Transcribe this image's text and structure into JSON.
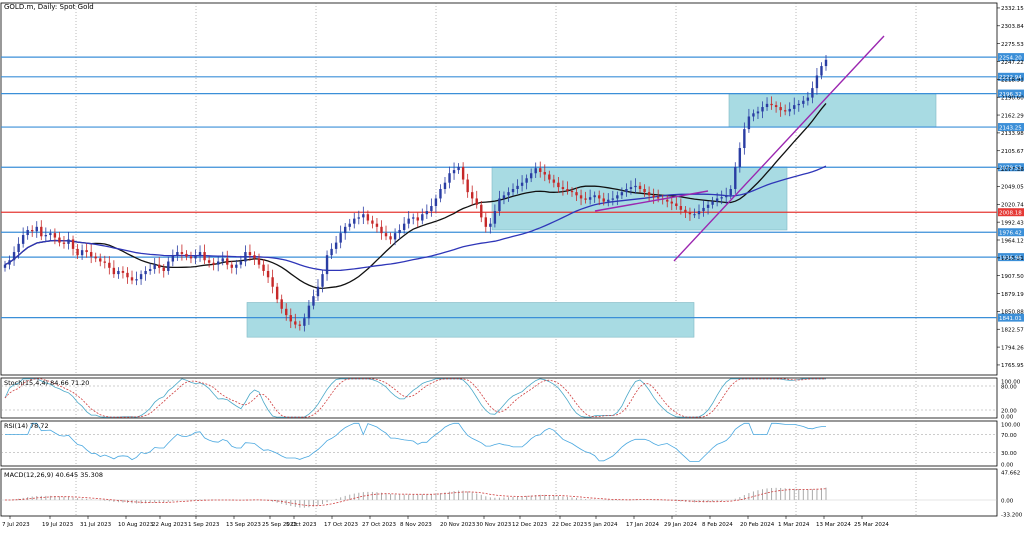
{
  "title": "GOLD.m, Daily:  Spot Gold",
  "colors": {
    "bull": "#2a3da3",
    "bear": "#c62828",
    "ma_fast": "#111111",
    "ma_slow": "#2f36b8",
    "hline": "#3b8fd8",
    "hline_red": "#e53935",
    "zone": "#a8dbe3",
    "trend": "#9b27b0",
    "price_tag": "#3b8fd8"
  },
  "price_scale": {
    "ticks": [
      "2332.15",
      "2303.84",
      "2275.53",
      "2247.22",
      "2218.91",
      "2190.60",
      "2162.29",
      "2133.98",
      "2105.67",
      "2077.36",
      "2049.05",
      "2020.74",
      "1992.43",
      "1964.12",
      "1935.81",
      "1907.50",
      "1879.19",
      "1850.88",
      "1822.57",
      "1794.26",
      "1765.95"
    ],
    "tags": [
      "2254.20",
      "2222.94",
      "2196.32",
      "2143.25",
      "2079.53",
      "2008.18",
      "1976.42",
      "1936.96",
      "1841.01"
    ],
    "ylim": [
      1750,
      2340
    ]
  },
  "date_labels": [
    "7 Jul 2023",
    "19 Jul 2023",
    "31 Jul 2023",
    "10 Aug 2023",
    "22 Aug 2023",
    "1 Sep 2023",
    "13 Sep 2023",
    "25 Sep 2023",
    "5 Oct 2023",
    "17 Oct 2023",
    "27 Oct 2023",
    "8 Nov 2023",
    "20 Nov 2023",
    "30 Nov 2023",
    "12 Dec 2023",
    "22 Dec 2023",
    "5 Jan 2024",
    "17 Jan 2024",
    "29 Jan 2024",
    "8 Feb 2024",
    "20 Feb 2024",
    "1 Mar 2024",
    "13 Mar 2024",
    "25 Mar 2024"
  ],
  "stoch": {
    "label": "Stoch(15,4,4) 84.66 71.20",
    "ticks": [
      "100.00",
      "80.00",
      "20.00",
      "0.00"
    ]
  },
  "rsi": {
    "label": "RSI(14) 78.72",
    "ticks": [
      "100.00",
      "70.00",
      "30.00",
      "0.00"
    ]
  },
  "macd": {
    "label": "MACD(12,26,9) 40.645 35.308",
    "ticks": [
      "47.662",
      "0.00",
      "-33.200"
    ]
  },
  "chart_data": {
    "type": "candlestick",
    "title": "GOLD.m, Daily:  Spot Gold",
    "x_range": [
      "7 Jul 2023",
      "27 Mar 2024"
    ],
    "ylim": [
      1750,
      2340
    ],
    "closes": [
      1925,
      1932,
      1945,
      1958,
      1972,
      1980,
      1978,
      1985,
      1970,
      1972,
      1975,
      1968,
      1960,
      1958,
      1965,
      1950,
      1940,
      1948,
      1945,
      1938,
      1935,
      1930,
      1928,
      1920,
      1910,
      1915,
      1912,
      1905,
      1900,
      1902,
      1910,
      1915,
      1918,
      1925,
      1920,
      1915,
      1930,
      1940,
      1945,
      1942,
      1938,
      1935,
      1940,
      1945,
      1932,
      1928,
      1925,
      1930,
      1935,
      1925,
      1920,
      1925,
      1930,
      1945,
      1940,
      1935,
      1925,
      1915,
      1905,
      1890,
      1870,
      1855,
      1845,
      1835,
      1830,
      1828,
      1840,
      1860,
      1875,
      1890,
      1910,
      1940,
      1950,
      1960,
      1975,
      1985,
      1990,
      1998,
      2000,
      2005,
      1995,
      1990,
      1985,
      1975,
      1970,
      1965,
      1975,
      1980,
      1990,
      1998,
      2000,
      1995,
      2005,
      2010,
      2018,
      2030,
      2045,
      2055,
      2070,
      2075,
      2080,
      2060,
      2040,
      2030,
      2020,
      2000,
      1985,
      1990,
      2010,
      2030,
      2035,
      2040,
      2045,
      2050,
      2055,
      2062,
      2070,
      2078,
      2072,
      2068,
      2060,
      2055,
      2048,
      2045,
      2042,
      2040,
      2035,
      2030,
      2028,
      2032,
      2035,
      2030,
      2025,
      2028,
      2030,
      2035,
      2040,
      2045,
      2048,
      2050,
      2045,
      2040,
      2035,
      2032,
      2030,
      2028,
      2025,
      2022,
      2018,
      2012,
      2008,
      2005,
      2005,
      2010,
      2015,
      2020,
      2025,
      2030,
      2032,
      2035,
      2045,
      2080,
      2110,
      2140,
      2160,
      2165,
      2168,
      2175,
      2180,
      2178,
      2175,
      2170,
      2168,
      2172,
      2178,
      2180,
      2185,
      2190,
      2205,
      2225,
      2240,
      2250
    ],
    "levels": [
      {
        "value": 2254.2,
        "color": "blue"
      },
      {
        "value": 2222.94,
        "color": "blue"
      },
      {
        "value": 2196.32,
        "color": "blue"
      },
      {
        "value": 2143.25,
        "color": "blue"
      },
      {
        "value": 2079.53,
        "color": "blue"
      },
      {
        "value": 2008.18,
        "color": "red"
      },
      {
        "value": 1976.42,
        "color": "blue"
      },
      {
        "value": 1936.96,
        "color": "blue"
      },
      {
        "value": 1841.01,
        "color": "blue"
      }
    ],
    "zones": [
      {
        "from": "25 Sep 2023",
        "to": "12 Feb 2024",
        "low": 1810,
        "high": 1865
      },
      {
        "from": "5 Dec 2023",
        "to": "29 Feb 2024",
        "low": 1980,
        "high": 2080
      },
      {
        "from": "1 Mar 2024",
        "to": "5 Apr 2024",
        "low": 2143,
        "high": 2196
      }
    ]
  }
}
